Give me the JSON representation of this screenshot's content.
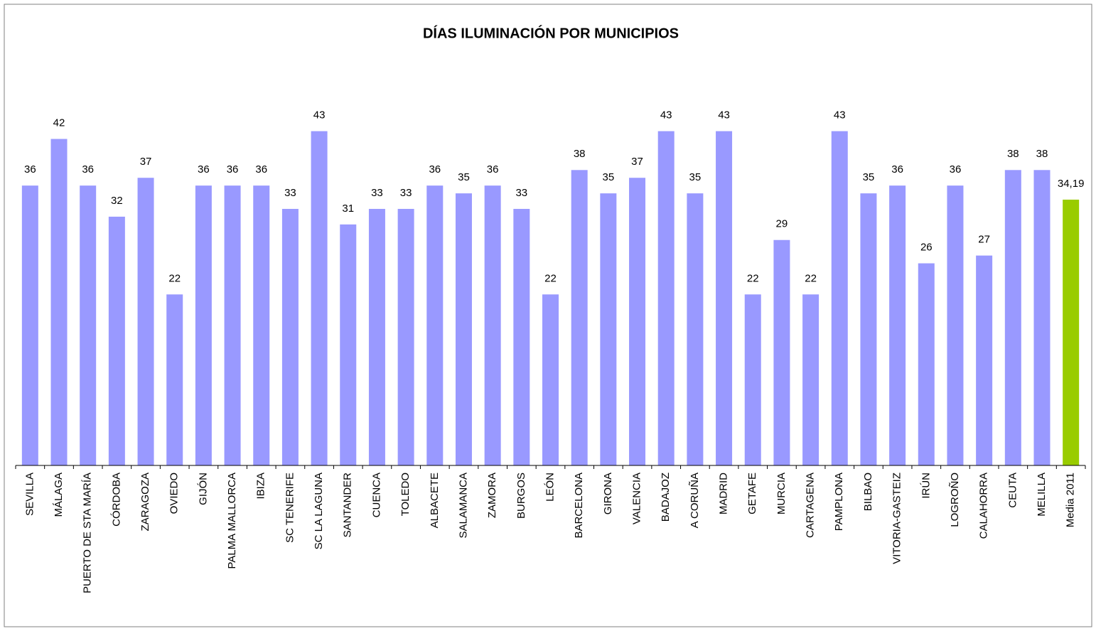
{
  "chart_data": {
    "type": "bar",
    "title": "DÍAS ILUMINACIÓN POR MUNICIPIOS",
    "categories": [
      "SEVILLA",
      "MÁLAGA",
      "PUERTO DE STA MARÍA",
      "CÓRDOBA",
      "ZARAGOZA",
      "OVIEDO",
      "GIJÓN",
      "PALMA MALLORCA",
      "IBIZA",
      "SC TENERIFE",
      "SC LA LAGUNA",
      "SANTANDER",
      "CUENCA",
      "TOLEDO",
      "ALBACETE",
      "SALAMANCA",
      "ZAMORA",
      "BURGOS",
      "LEÓN",
      "BARCELONA",
      "GIRONA",
      "VALENCIA",
      "BADAJOZ",
      "A CORUÑA",
      "MADRID",
      "GETAFE",
      "MURCIA",
      "CARTAGENA",
      "PAMPLONA",
      "BILBAO",
      "VITORIA-GASTEIZ",
      "IRÚN",
      "LOGROÑO",
      "CALAHORRA",
      "CEUTA",
      "MELILLA",
      "Media 2011"
    ],
    "values": [
      36,
      42,
      36,
      32,
      37,
      22,
      36,
      36,
      36,
      33,
      43,
      31,
      33,
      33,
      36,
      35,
      36,
      33,
      22,
      38,
      35,
      37,
      43,
      35,
      43,
      22,
      29,
      22,
      43,
      35,
      36,
      26,
      36,
      27,
      38,
      38,
      34.19
    ],
    "value_labels": [
      "36",
      "42",
      "36",
      "32",
      "37",
      "22",
      "36",
      "36",
      "36",
      "33",
      "43",
      "31",
      "33",
      "33",
      "36",
      "35",
      "36",
      "33",
      "22",
      "38",
      "35",
      "37",
      "43",
      "35",
      "43",
      "22",
      "29",
      "22",
      "43",
      "35",
      "36",
      "26",
      "36",
      "27",
      "38",
      "38",
      "34,19"
    ],
    "colors": [
      "#9999ff",
      "#9999ff",
      "#9999ff",
      "#9999ff",
      "#9999ff",
      "#9999ff",
      "#9999ff",
      "#9999ff",
      "#9999ff",
      "#9999ff",
      "#9999ff",
      "#9999ff",
      "#9999ff",
      "#9999ff",
      "#9999ff",
      "#9999ff",
      "#9999ff",
      "#9999ff",
      "#9999ff",
      "#9999ff",
      "#9999ff",
      "#9999ff",
      "#9999ff",
      "#9999ff",
      "#9999ff",
      "#9999ff",
      "#9999ff",
      "#9999ff",
      "#9999ff",
      "#9999ff",
      "#9999ff",
      "#9999ff",
      "#9999ff",
      "#9999ff",
      "#9999ff",
      "#9999ff",
      "#99cc00"
    ],
    "ylim": [
      0,
      50
    ]
  }
}
